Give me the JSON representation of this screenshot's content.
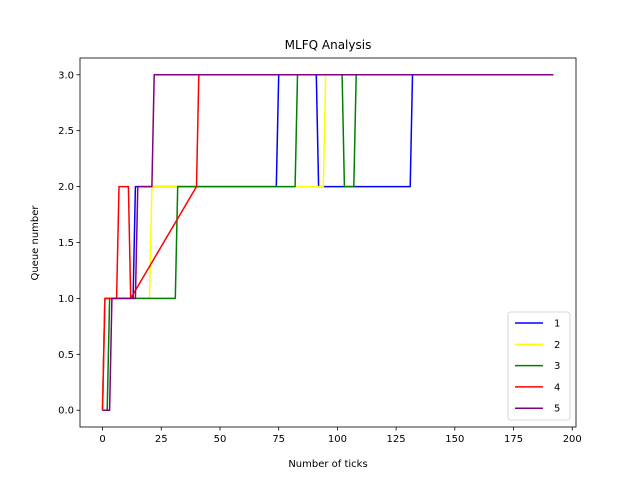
{
  "chart_data": {
    "type": "line",
    "title": "MLFQ Analysis",
    "xlabel": "Number of ticks",
    "ylabel": "Queue number",
    "xlim": [
      -9.6,
      201.6
    ],
    "ylim": [
      -0.15,
      3.15
    ],
    "xticks": [
      0,
      25,
      50,
      75,
      100,
      125,
      150,
      175,
      200
    ],
    "yticks": [
      0.0,
      0.5,
      1.0,
      1.5,
      2.0,
      2.5,
      3.0
    ],
    "grid": false,
    "legend_position": "lower-right",
    "series": [
      {
        "name": "1",
        "color": "#0000ff",
        "x": [
          0,
          1,
          2,
          13,
          14,
          31,
          32,
          74,
          75,
          91,
          92,
          131,
          132,
          192
        ],
        "y": [
          0,
          1,
          1,
          1,
          2,
          2,
          2,
          2,
          3,
          3,
          2,
          2,
          3,
          3
        ]
      },
      {
        "name": "2",
        "color": "#ffff00",
        "x": [
          0,
          1,
          20,
          21,
          94,
          95,
          192
        ],
        "y": [
          0,
          1,
          1,
          2,
          2,
          3,
          3
        ]
      },
      {
        "name": "3",
        "color": "#008000",
        "x": [
          0,
          2,
          3,
          31,
          32,
          82,
          83,
          102,
          103,
          107,
          108,
          192
        ],
        "y": [
          0,
          0,
          1,
          1,
          2,
          2,
          3,
          3,
          2,
          2,
          3,
          3
        ]
      },
      {
        "name": "4",
        "color": "#ff0000",
        "x": [
          0,
          1,
          6,
          7,
          11,
          12,
          40,
          41,
          192
        ],
        "y": [
          0,
          1,
          1,
          2,
          2,
          1,
          2,
          3,
          3
        ]
      },
      {
        "name": "5",
        "color": "#800080",
        "x": [
          0,
          3,
          4,
          14,
          15,
          21,
          22,
          192
        ],
        "y": [
          0,
          0,
          1,
          1,
          2,
          2,
          3,
          3
        ]
      }
    ]
  }
}
